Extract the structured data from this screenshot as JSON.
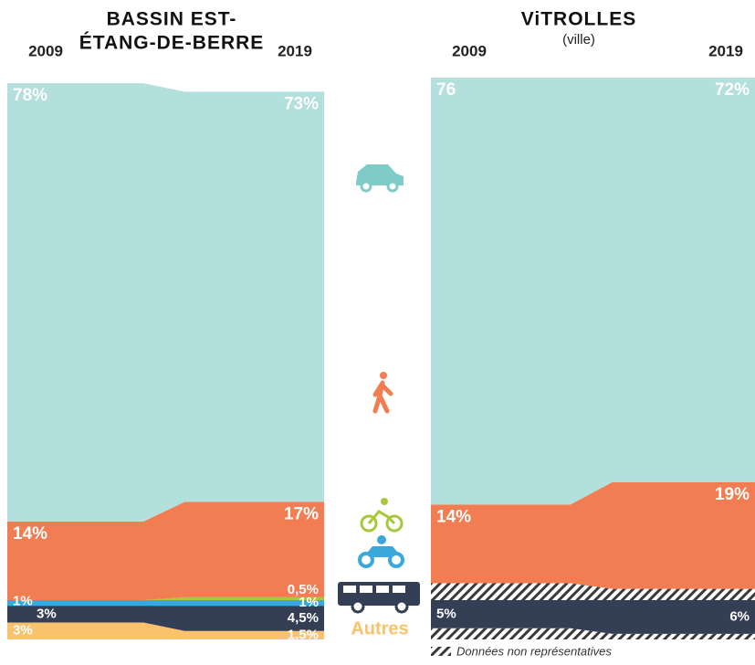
{
  "chart_data": [
    {
      "type": "area",
      "title_lines": [
        "BASSIN EST-",
        "ÉTANG-DE-BERRE"
      ],
      "x": [
        "2009",
        "2019"
      ],
      "ylim": [
        0,
        100
      ],
      "series": [
        {
          "name": "Autres",
          "color": "#fbc26c",
          "values": [
            3,
            1.5
          ],
          "value_labels": [
            "3%",
            "1,5%"
          ]
        },
        {
          "color": "#343e54",
          "values": [
            3,
            4.5
          ],
          "value_labels": [
            "3%",
            "4,5%"
          ]
        },
        {
          "color": "#3ba8dc",
          "values": [
            1,
            1
          ],
          "value_labels": [
            "1%",
            "1%"
          ]
        },
        {
          "color": "#a8c83c",
          "values": [
            0,
            0.5
          ],
          "value_labels": [
            null,
            "0,5%"
          ]
        },
        {
          "color": "#f27d52",
          "values": [
            14,
            17
          ],
          "value_labels": [
            "14%",
            "17%"
          ]
        },
        {
          "color": "#b3dfdc",
          "values": [
            78,
            73
          ],
          "value_labels": [
            "78%",
            "73%"
          ]
        }
      ]
    },
    {
      "type": "area",
      "title": "ViTROLLES",
      "subtitle": "(ville)",
      "x": [
        "2009",
        "2019"
      ],
      "ylim": [
        0,
        100
      ],
      "series": [
        {
          "name": "Données non représentatives",
          "pattern": "hatch",
          "color": "#3a3a3a",
          "values": [
            2,
            1
          ]
        },
        {
          "color": "#343e54",
          "values": [
            5,
            6
          ],
          "value_labels": [
            "5%",
            "6%"
          ]
        },
        {
          "pattern": "hatch",
          "color": "#3a3a3a",
          "values": [
            3,
            2
          ]
        },
        {
          "color": "#f27d52",
          "values": [
            14,
            19
          ],
          "value_labels": [
            "14%",
            "19%"
          ]
        },
        {
          "color": "#b3dfdc",
          "values": [
            76,
            72
          ],
          "value_labels": [
            "76",
            "72%"
          ]
        }
      ]
    }
  ]
}
